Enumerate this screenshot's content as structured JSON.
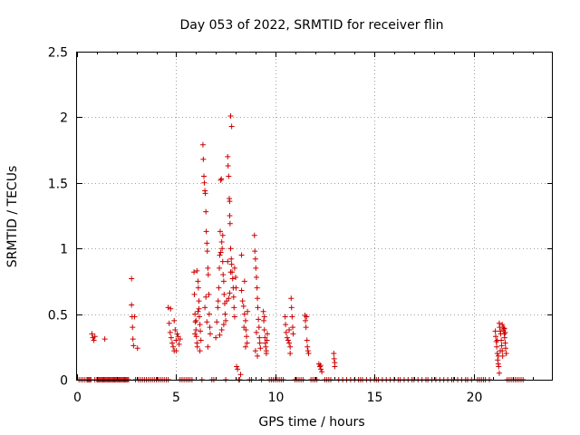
{
  "chart_data": {
    "type": "scatter",
    "title": "Day 053 of 2022, SRMTID for receiver flin",
    "xlabel": "GPS time / hours",
    "ylabel": "SRMTID / TECUs",
    "xlim": [
      0,
      24
    ],
    "ylim": [
      0,
      2.5
    ],
    "grid": true,
    "marker": "+",
    "x_ticks": [
      0,
      5,
      10,
      15,
      20
    ],
    "x_tick_labels": [
      "0",
      "5",
      "10",
      "15",
      "20"
    ],
    "y_ticks": [
      0,
      0.5,
      1,
      1.5,
      2,
      2.5
    ],
    "y_tick_labels": [
      "0",
      "0.5",
      "1",
      "1.5",
      "2",
      "2.5"
    ],
    "series": [
      {
        "name": "SRMTID",
        "color": "#cc0000",
        "points": [
          [
            0.75,
            0.35
          ],
          [
            0.8,
            0.32
          ],
          [
            0.85,
            0.3
          ],
          [
            0.9,
            0.33
          ],
          [
            1.4,
            0.31
          ],
          [
            2.75,
            0.77
          ],
          [
            2.75,
            0.57
          ],
          [
            2.78,
            0.48
          ],
          [
            2.8,
            0.4
          ],
          [
            2.82,
            0.31
          ],
          [
            2.85,
            0.26
          ],
          [
            2.9,
            0.48
          ],
          [
            3.05,
            0.24
          ],
          [
            4.6,
            0.55
          ],
          [
            4.65,
            0.43
          ],
          [
            4.7,
            0.36
          ],
          [
            4.75,
            0.32
          ],
          [
            4.8,
            0.28
          ],
          [
            4.85,
            0.25
          ],
          [
            4.9,
            0.22
          ],
          [
            4.95,
            0.38
          ],
          [
            5.0,
            0.3
          ],
          [
            5.05,
            0.35
          ],
          [
            5.1,
            0.33
          ],
          [
            5.15,
            0.27
          ],
          [
            5.2,
            0.31
          ],
          [
            4.72,
            0.54
          ],
          [
            4.9,
            0.45
          ],
          [
            5.0,
            0.22
          ],
          [
            5.9,
            0.82
          ],
          [
            5.92,
            0.65
          ],
          [
            5.95,
            0.5
          ],
          [
            5.97,
            0.44
          ],
          [
            6.0,
            0.38
          ],
          [
            6.02,
            0.33
          ],
          [
            6.05,
            0.28
          ],
          [
            6.07,
            0.25
          ],
          [
            6.1,
            0.52
          ],
          [
            6.12,
            0.7
          ],
          [
            6.15,
            0.6
          ],
          [
            6.17,
            0.48
          ],
          [
            6.2,
            0.42
          ],
          [
            6.22,
            0.37
          ],
          [
            6.25,
            0.3
          ],
          [
            6.05,
            0.83
          ],
          [
            6.1,
            0.75
          ],
          [
            6.15,
            0.54
          ],
          [
            6.0,
            0.45
          ],
          [
            5.95,
            0.35
          ],
          [
            6.2,
            0.22
          ],
          [
            6.35,
            1.79
          ],
          [
            6.37,
            1.68
          ],
          [
            6.4,
            1.55
          ],
          [
            6.42,
            1.5
          ],
          [
            6.45,
            1.44
          ],
          [
            6.47,
            1.42
          ],
          [
            6.5,
            1.28
          ],
          [
            6.52,
            1.13
          ],
          [
            6.55,
            1.04
          ],
          [
            6.57,
            0.98
          ],
          [
            6.6,
            0.85
          ],
          [
            6.62,
            0.8
          ],
          [
            6.65,
            0.65
          ],
          [
            6.67,
            0.5
          ],
          [
            6.7,
            0.4
          ],
          [
            6.72,
            0.35
          ],
          [
            6.6,
            0.25
          ],
          [
            6.45,
            0.55
          ],
          [
            6.5,
            0.63
          ],
          [
            6.55,
            0.44
          ],
          [
            7.0,
            0.32
          ],
          [
            7.05,
            0.44
          ],
          [
            7.1,
            0.55
          ],
          [
            7.12,
            0.6
          ],
          [
            7.15,
            0.7
          ],
          [
            7.18,
            0.85
          ],
          [
            7.2,
            0.95
          ],
          [
            7.22,
            1.13
          ],
          [
            7.25,
            1.52
          ],
          [
            7.28,
            1.53
          ],
          [
            7.3,
            1.05
          ],
          [
            7.32,
            1.0
          ],
          [
            7.35,
            0.9
          ],
          [
            7.37,
            0.8
          ],
          [
            7.4,
            0.75
          ],
          [
            7.42,
            0.65
          ],
          [
            7.45,
            0.58
          ],
          [
            7.47,
            0.5
          ],
          [
            7.5,
            0.45
          ],
          [
            7.2,
            0.34
          ],
          [
            7.3,
            0.38
          ],
          [
            7.4,
            0.42
          ],
          [
            7.25,
            0.97
          ],
          [
            7.35,
            1.1
          ],
          [
            7.6,
            1.7
          ],
          [
            7.62,
            1.63
          ],
          [
            7.65,
            1.55
          ],
          [
            7.68,
            1.38
          ],
          [
            7.7,
            1.25
          ],
          [
            7.72,
            1.19
          ],
          [
            7.75,
            1.0
          ],
          [
            7.78,
            0.92
          ],
          [
            7.8,
            0.88
          ],
          [
            7.82,
            0.82
          ],
          [
            7.85,
            0.77
          ],
          [
            7.88,
            0.7
          ],
          [
            7.9,
            0.63
          ],
          [
            7.92,
            0.55
          ],
          [
            7.95,
            0.48
          ],
          [
            7.65,
            0.62
          ],
          [
            7.7,
            0.66
          ],
          [
            7.75,
            0.82
          ],
          [
            7.6,
            0.9
          ],
          [
            7.55,
            0.6
          ],
          [
            7.75,
            2.01
          ],
          [
            7.8,
            1.93
          ],
          [
            7.7,
            1.36
          ],
          [
            7.95,
            0.85
          ],
          [
            8.0,
            0.78
          ],
          [
            8.02,
            0.7
          ],
          [
            8.05,
            0.1
          ],
          [
            8.1,
            0.08
          ],
          [
            8.25,
            0.04
          ],
          [
            8.3,
            0.95
          ],
          [
            8.3,
            0.68
          ],
          [
            8.35,
            0.6
          ],
          [
            8.4,
            0.56
          ],
          [
            8.45,
            0.5
          ],
          [
            8.5,
            0.45
          ],
          [
            8.52,
            0.38
          ],
          [
            8.55,
            0.33
          ],
          [
            8.58,
            0.28
          ],
          [
            8.6,
            0.52
          ],
          [
            8.45,
            0.75
          ],
          [
            8.5,
            0.25
          ],
          [
            8.42,
            0.4
          ],
          [
            8.95,
            1.1
          ],
          [
            8.97,
            0.98
          ],
          [
            9.0,
            0.92
          ],
          [
            9.02,
            0.85
          ],
          [
            9.05,
            0.78
          ],
          [
            9.08,
            0.7
          ],
          [
            9.1,
            0.62
          ],
          [
            9.12,
            0.55
          ],
          [
            9.15,
            0.46
          ],
          [
            9.18,
            0.4
          ],
          [
            9.2,
            0.32
          ],
          [
            9.22,
            0.28
          ],
          [
            9.25,
            0.24
          ],
          [
            9.1,
            0.18
          ],
          [
            9.0,
            0.22
          ],
          [
            9.05,
            0.36
          ],
          [
            9.4,
            0.52
          ],
          [
            9.42,
            0.45
          ],
          [
            9.45,
            0.38
          ],
          [
            9.48,
            0.32
          ],
          [
            9.5,
            0.28
          ],
          [
            9.52,
            0.25
          ],
          [
            9.55,
            0.22
          ],
          [
            9.58,
            0.3
          ],
          [
            9.6,
            0.35
          ],
          [
            9.45,
            0.48
          ],
          [
            9.55,
            0.2
          ],
          [
            10.5,
            0.48
          ],
          [
            10.52,
            0.42
          ],
          [
            10.55,
            0.36
          ],
          [
            10.6,
            0.32
          ],
          [
            10.65,
            0.3
          ],
          [
            10.7,
            0.28
          ],
          [
            10.75,
            0.25
          ],
          [
            10.8,
            0.62
          ],
          [
            10.82,
            0.55
          ],
          [
            10.85,
            0.48
          ],
          [
            10.88,
            0.4
          ],
          [
            10.9,
            0.35
          ],
          [
            10.75,
            0.2
          ],
          [
            10.7,
            0.38
          ],
          [
            11.5,
            0.49
          ],
          [
            11.52,
            0.45
          ],
          [
            11.55,
            0.4
          ],
          [
            11.6,
            0.3
          ],
          [
            11.62,
            0.25
          ],
          [
            11.65,
            0.22
          ],
          [
            11.68,
            0.2
          ],
          [
            11.58,
            0.48
          ],
          [
            12.2,
            0.12
          ],
          [
            12.25,
            0.1
          ],
          [
            12.3,
            0.08
          ],
          [
            12.35,
            0.06
          ],
          [
            12.28,
            0.11
          ],
          [
            12.95,
            0.2
          ],
          [
            12.97,
            0.16
          ],
          [
            13.0,
            0.13
          ],
          [
            13.0,
            0.1
          ],
          [
            21.1,
            0.37
          ],
          [
            21.12,
            0.33
          ],
          [
            21.15,
            0.29
          ],
          [
            21.17,
            0.25
          ],
          [
            21.2,
            0.2
          ],
          [
            21.22,
            0.15
          ],
          [
            21.25,
            0.12
          ],
          [
            21.27,
            0.1
          ],
          [
            21.3,
            0.43
          ],
          [
            21.32,
            0.4
          ],
          [
            21.35,
            0.37
          ],
          [
            21.37,
            0.35
          ],
          [
            21.4,
            0.3
          ],
          [
            21.42,
            0.26
          ],
          [
            21.45,
            0.22
          ],
          [
            21.47,
            0.18
          ],
          [
            21.5,
            0.4
          ],
          [
            21.52,
            0.38
          ],
          [
            21.55,
            0.35
          ],
          [
            21.57,
            0.32
          ],
          [
            21.6,
            0.28
          ],
          [
            21.62,
            0.24
          ],
          [
            21.65,
            0.2
          ],
          [
            21.3,
            0.05
          ],
          [
            21.45,
            0.42
          ],
          [
            21.55,
            0.39
          ],
          [
            21.2,
            0.3
          ],
          [
            21.35,
            0.22
          ],
          [
            21.6,
            0.36
          ],
          [
            21.25,
            0.18
          ]
        ],
        "zero_points": [
          0.1,
          0.2,
          0.3,
          0.4,
          0.5,
          0.55,
          0.6,
          0.65,
          0.7,
          0.9,
          1.0,
          1.05,
          1.1,
          1.15,
          1.2,
          1.25,
          1.3,
          1.35,
          1.4,
          1.45,
          1.5,
          1.55,
          1.6,
          1.65,
          1.7,
          1.75,
          1.8,
          1.85,
          1.9,
          1.95,
          2.0,
          2.05,
          2.1,
          2.15,
          2.2,
          2.25,
          2.3,
          2.35,
          2.4,
          2.45,
          2.5,
          2.55,
          2.6,
          2.95,
          3.1,
          3.2,
          3.3,
          3.4,
          3.5,
          3.6,
          3.7,
          3.8,
          3.9,
          4.0,
          4.1,
          4.2,
          4.3,
          4.4,
          4.5,
          4.6,
          5.2,
          5.3,
          5.4,
          5.5,
          5.6,
          5.7,
          5.8,
          6.3,
          6.8,
          6.9,
          7.5,
          8.15,
          8.2,
          8.7,
          8.8,
          9.3,
          9.7,
          9.8,
          9.9,
          10.0,
          10.1,
          10.2,
          10.3,
          10.4,
          11.0,
          11.1,
          11.2,
          11.3,
          11.4,
          11.8,
          11.9,
          12.0,
          12.1,
          12.5,
          12.6,
          12.7,
          12.8,
          13.2,
          13.4,
          13.6,
          13.8,
          14.0,
          14.2,
          14.3,
          14.4,
          14.6,
          14.8,
          15.0,
          15.1,
          15.2,
          15.4,
          15.6,
          15.8,
          16.0,
          16.2,
          16.3,
          16.5,
          16.7,
          16.9,
          17.0,
          17.2,
          17.4,
          17.6,
          17.7,
          17.9,
          18.1,
          18.3,
          18.5,
          18.7,
          18.9,
          19.0,
          19.2,
          19.4,
          19.6,
          19.7,
          19.9,
          20.2,
          20.3,
          20.4,
          20.5,
          20.6,
          20.8,
          21.7,
          21.8,
          21.9,
          22.0,
          22.1,
          22.2,
          22.3,
          22.4,
          22.5
        ]
      }
    ]
  }
}
